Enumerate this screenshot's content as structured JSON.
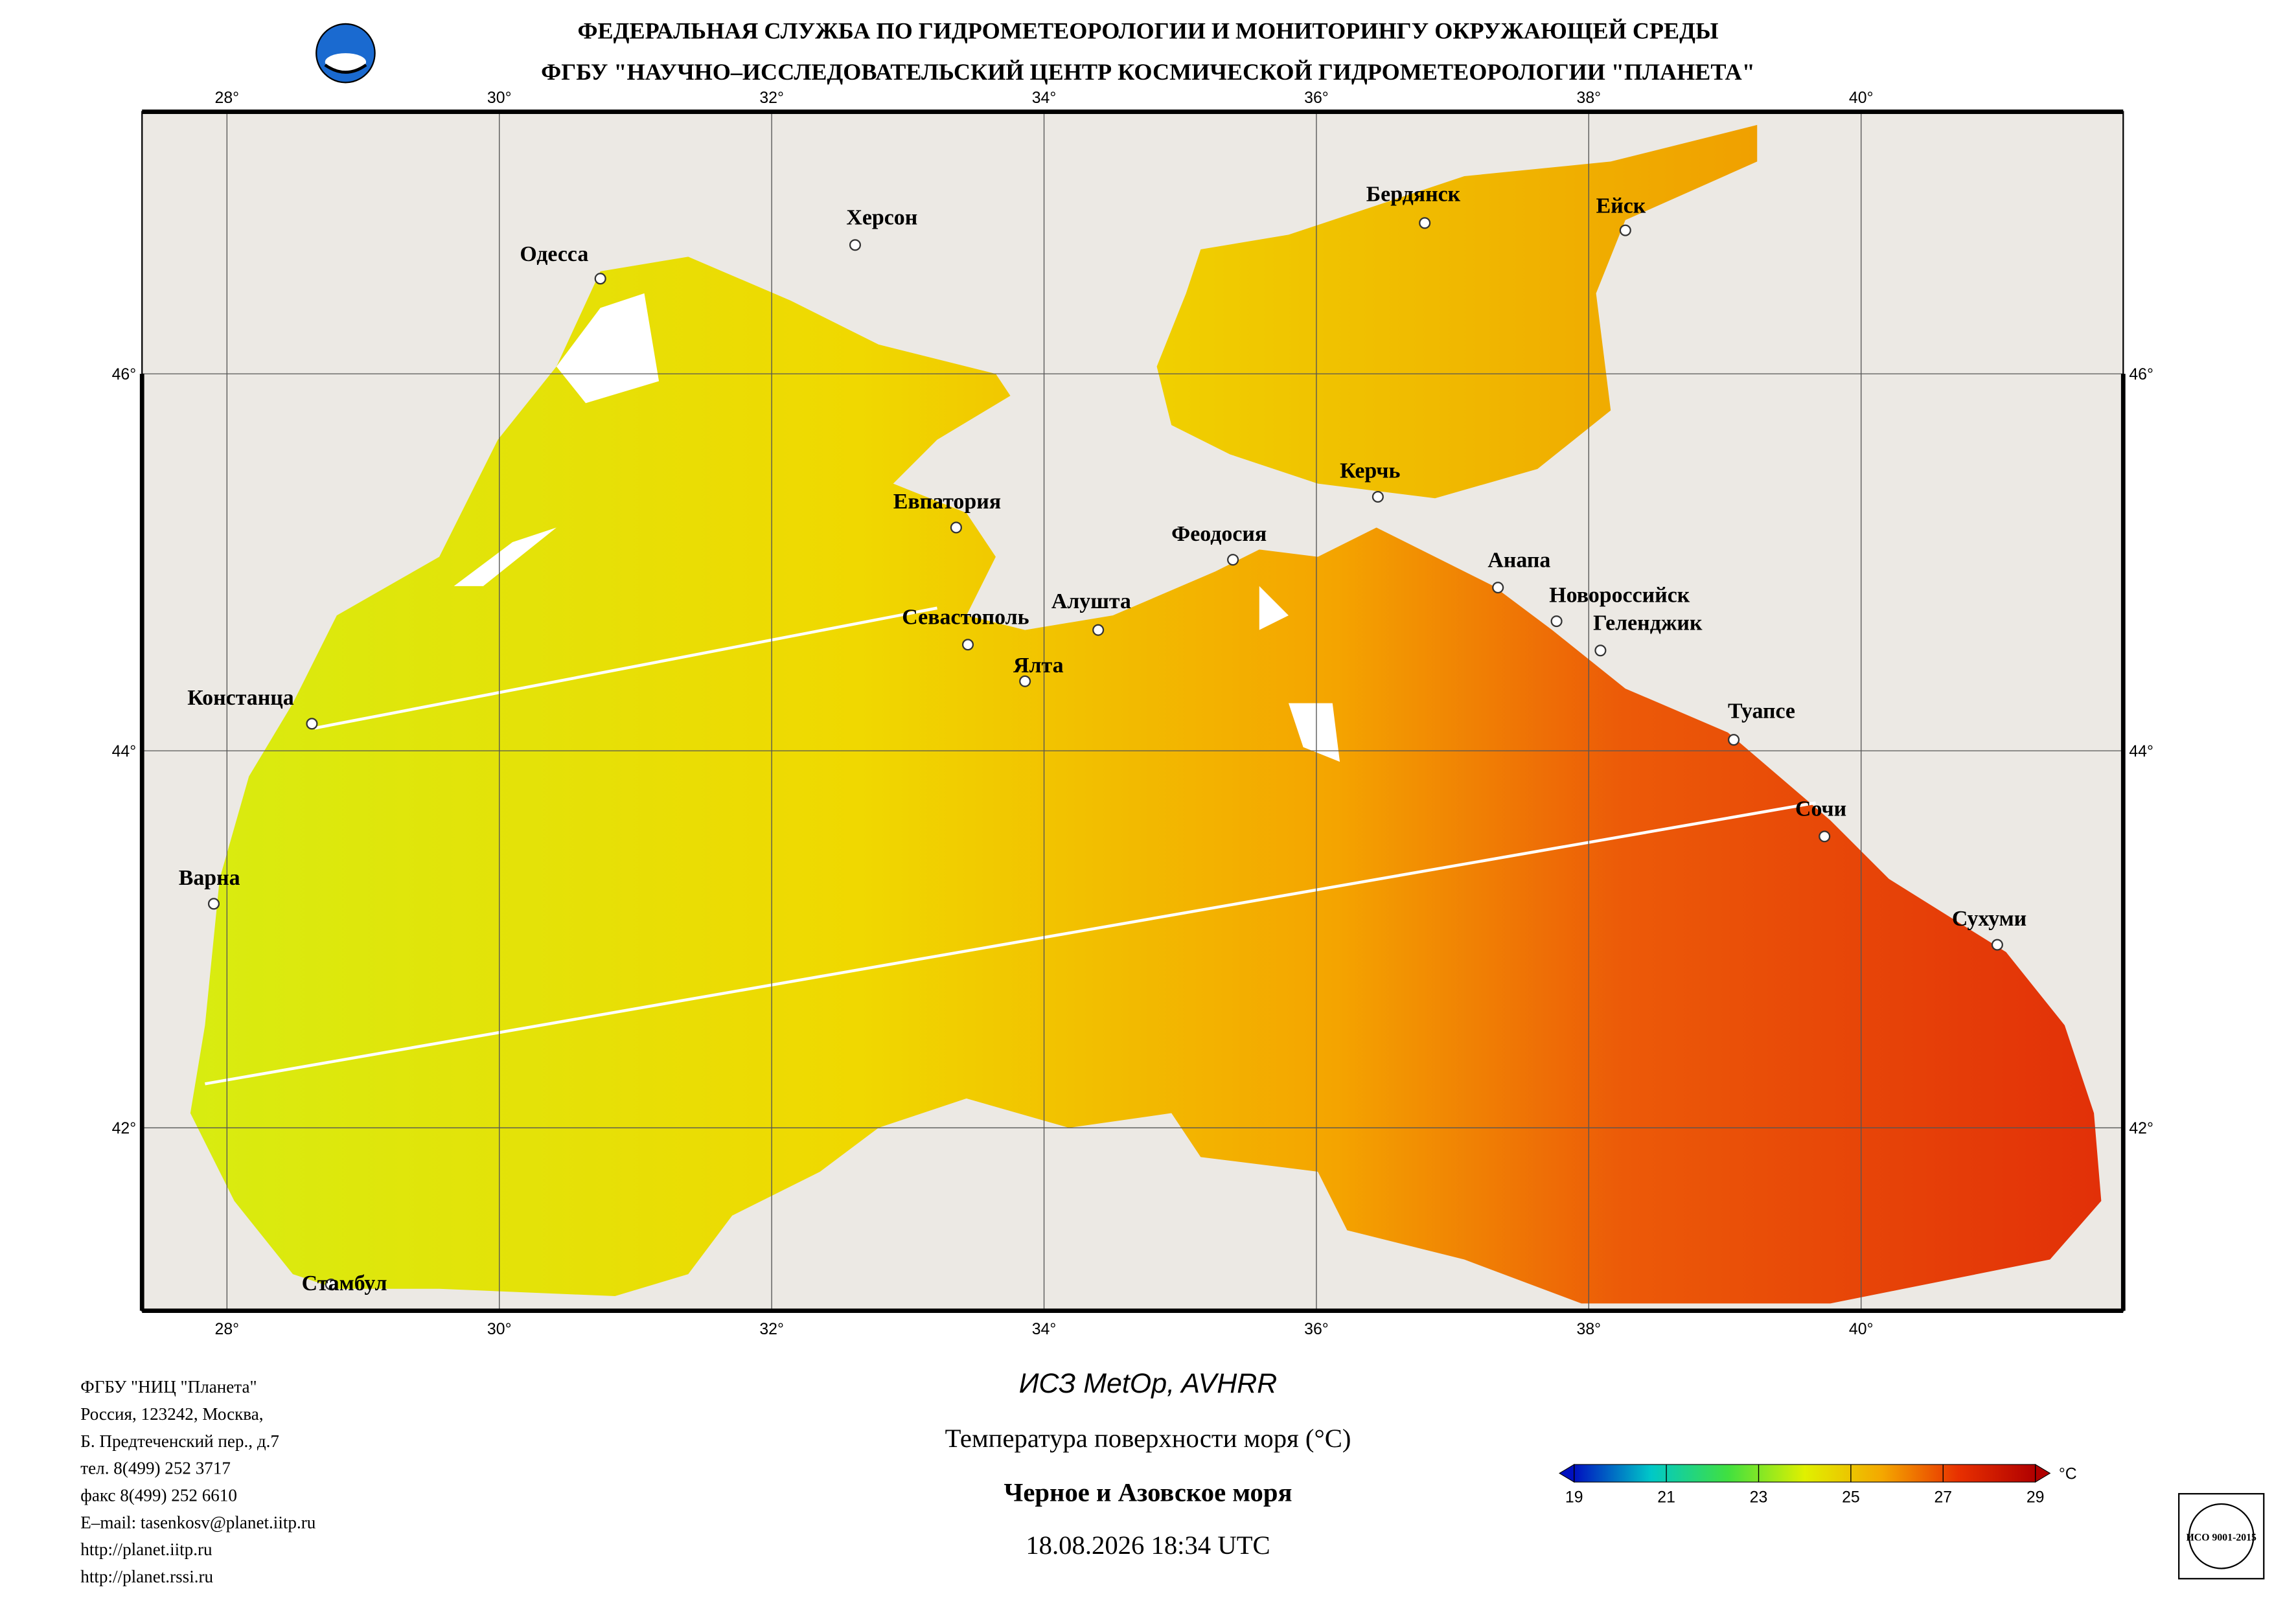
{
  "header": {
    "line1": "ФЕДЕРАЛЬНАЯ СЛУЖБА ПО ГИДРОМЕТЕОРОЛОГИИ И МОНИТОРИНГУ ОКРУЖАЮЩЕЙ СРЕДЫ",
    "line2": "ФГБУ \"НАУЧНО–ИССЛЕДОВАТЕЛЬСКИЙ ЦЕНТР КОСМИЧЕСКОЙ ГИДРОМЕТЕОРОЛОГИИ \"ПЛАНЕТА\""
  },
  "map": {
    "lon_ticks": [
      {
        "value": 28,
        "label": "28°"
      },
      {
        "value": 30,
        "label": "30°"
      },
      {
        "value": 32,
        "label": "32°"
      },
      {
        "value": 34,
        "label": "34°"
      },
      {
        "value": 36,
        "label": "36°"
      },
      {
        "value": 38,
        "label": "38°"
      },
      {
        "value": 40,
        "label": "40°"
      }
    ],
    "lat_ticks": [
      {
        "value": 46,
        "label": "46°"
      },
      {
        "value": 44,
        "label": "44°"
      },
      {
        "value": 42,
        "label": "42°"
      }
    ],
    "cities": [
      "Одесса",
      "Херсон",
      "Бердянск",
      "Ейск",
      "Евпатория",
      "Керчь",
      "Феодосия",
      "Анапа",
      "Новороссийск",
      "Геленджик",
      "Севастополь",
      "Алушта",
      "Ялта",
      "Констанца",
      "Туапсе",
      "Сочи",
      "Варна",
      "Сухуми",
      "Стамбул"
    ]
  },
  "footer": {
    "satellite": "ИСЗ MetOp, AVHRR",
    "product": "Температура поверхности моря (°C)",
    "region": "Черное и Азовское моря",
    "datetime": "18.08.2026 18:34 UTC",
    "address": [
      "ФГБУ \"НИЦ \"Планета\"",
      "Россия, 123242, Москва,",
      "Б. Предтеченский пер., д.7",
      "тел. 8(499) 252 3717",
      "факс 8(499) 252 6610",
      "E–mail: tasenkosv@planet.iitp.ru",
      "http://planet.iitp.ru",
      "http://planet.rssi.ru"
    ],
    "iso_badge": "ИСО 9001-2015"
  },
  "colorbar": {
    "ticks": [
      19,
      21,
      23,
      25,
      27,
      29
    ],
    "unit": "°C",
    "colors": [
      "#0010c0",
      "#00c8c8",
      "#40e040",
      "#e0f000",
      "#f4a800",
      "#e83000",
      "#b00000"
    ]
  }
}
